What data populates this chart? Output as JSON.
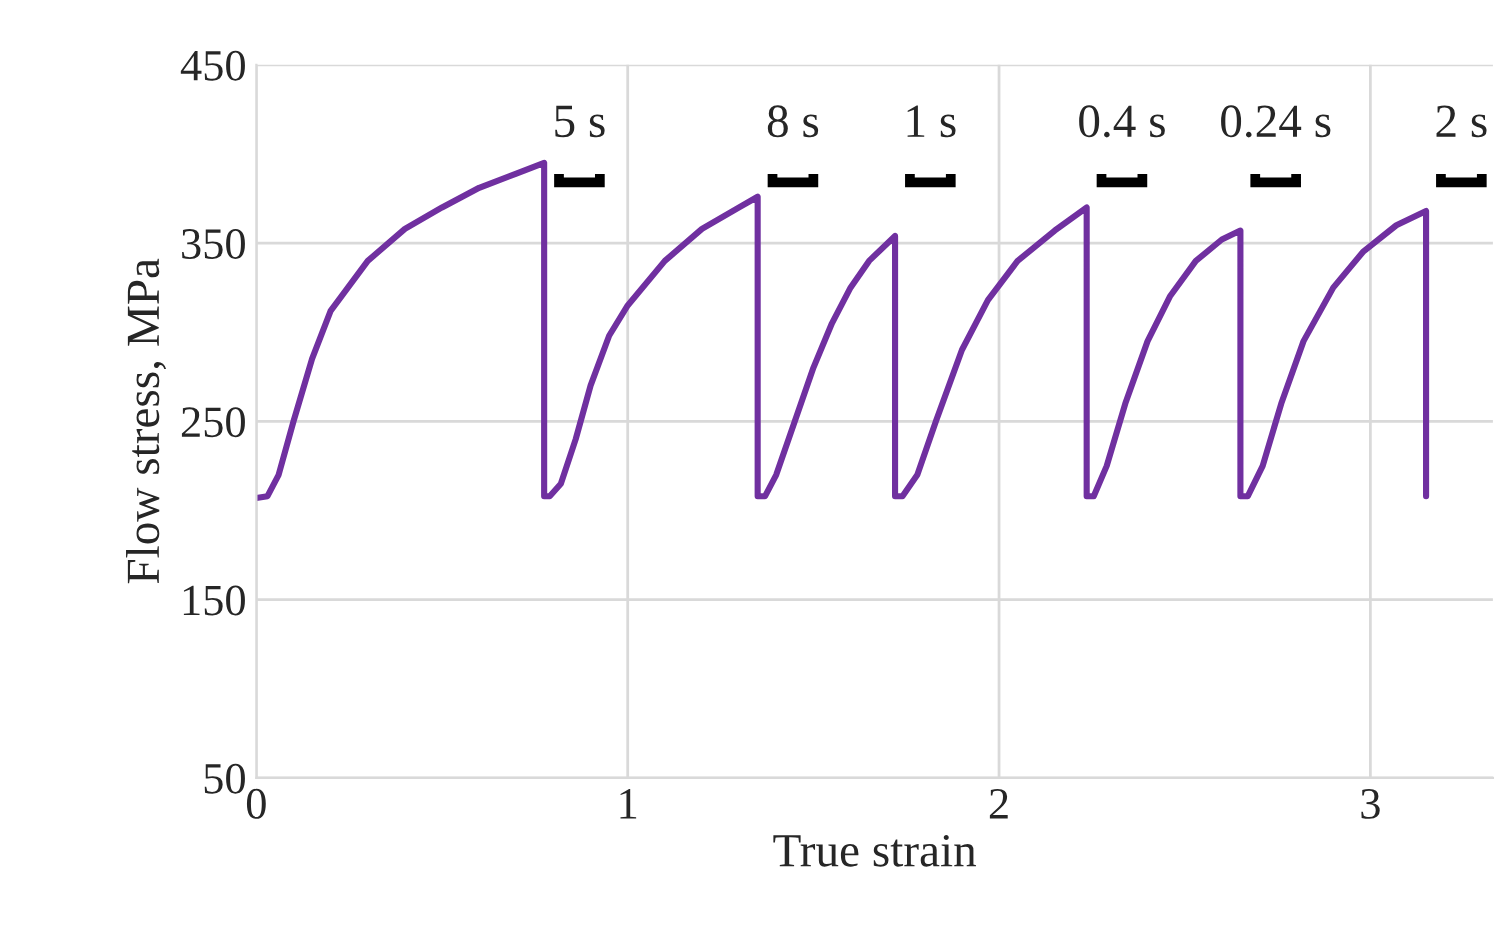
{
  "chart_data": {
    "type": "line",
    "xlabel": "True strain",
    "ylabel": "Flow stress, MPa",
    "xlim": [
      0,
      3.33
    ],
    "xticks": [
      0,
      1,
      2,
      3
    ],
    "ylim": [
      50,
      450
    ],
    "yticks": [
      50,
      150,
      250,
      350,
      450
    ],
    "grid": true,
    "marker": "none",
    "line_style": "solid",
    "series": [
      {
        "color": "#7030a0",
        "x": [
          0,
          0.03,
          0.06,
          0.1,
          0.15,
          0.2,
          0.3,
          0.4,
          0.5,
          0.6,
          0.7,
          0.775,
          0.775,
          0.79,
          0.82,
          0.86,
          0.9,
          0.95,
          1.0,
          1.1,
          1.2,
          1.3,
          1.35,
          1.35,
          1.37,
          1.4,
          1.45,
          1.5,
          1.55,
          1.6,
          1.65,
          1.72,
          1.72,
          1.74,
          1.78,
          1.83,
          1.9,
          1.97,
          2.05,
          2.15,
          2.236,
          2.236,
          2.255,
          2.29,
          2.34,
          2.4,
          2.46,
          2.53,
          2.6,
          2.65,
          2.65,
          2.67,
          2.71,
          2.76,
          2.82,
          2.9,
          2.98,
          3.07,
          3.15,
          3.15
        ],
        "values": [
          207,
          208,
          220,
          250,
          285,
          312,
          340,
          358,
          370,
          381,
          389,
          395,
          208,
          208,
          215,
          240,
          270,
          298,
          315,
          340,
          358,
          370,
          376,
          208,
          208,
          220,
          250,
          280,
          305,
          325,
          340,
          354,
          208,
          208,
          220,
          250,
          290,
          318,
          340,
          357,
          370,
          208,
          208,
          225,
          260,
          295,
          320,
          340,
          352,
          357,
          208,
          208,
          225,
          260,
          295,
          325,
          345,
          360,
          368,
          208
        ]
      }
    ],
    "annotations": [
      "5 s",
      "8 s",
      "1 s",
      "0.4 s",
      "0.24 s",
      "2 s"
    ]
  }
}
